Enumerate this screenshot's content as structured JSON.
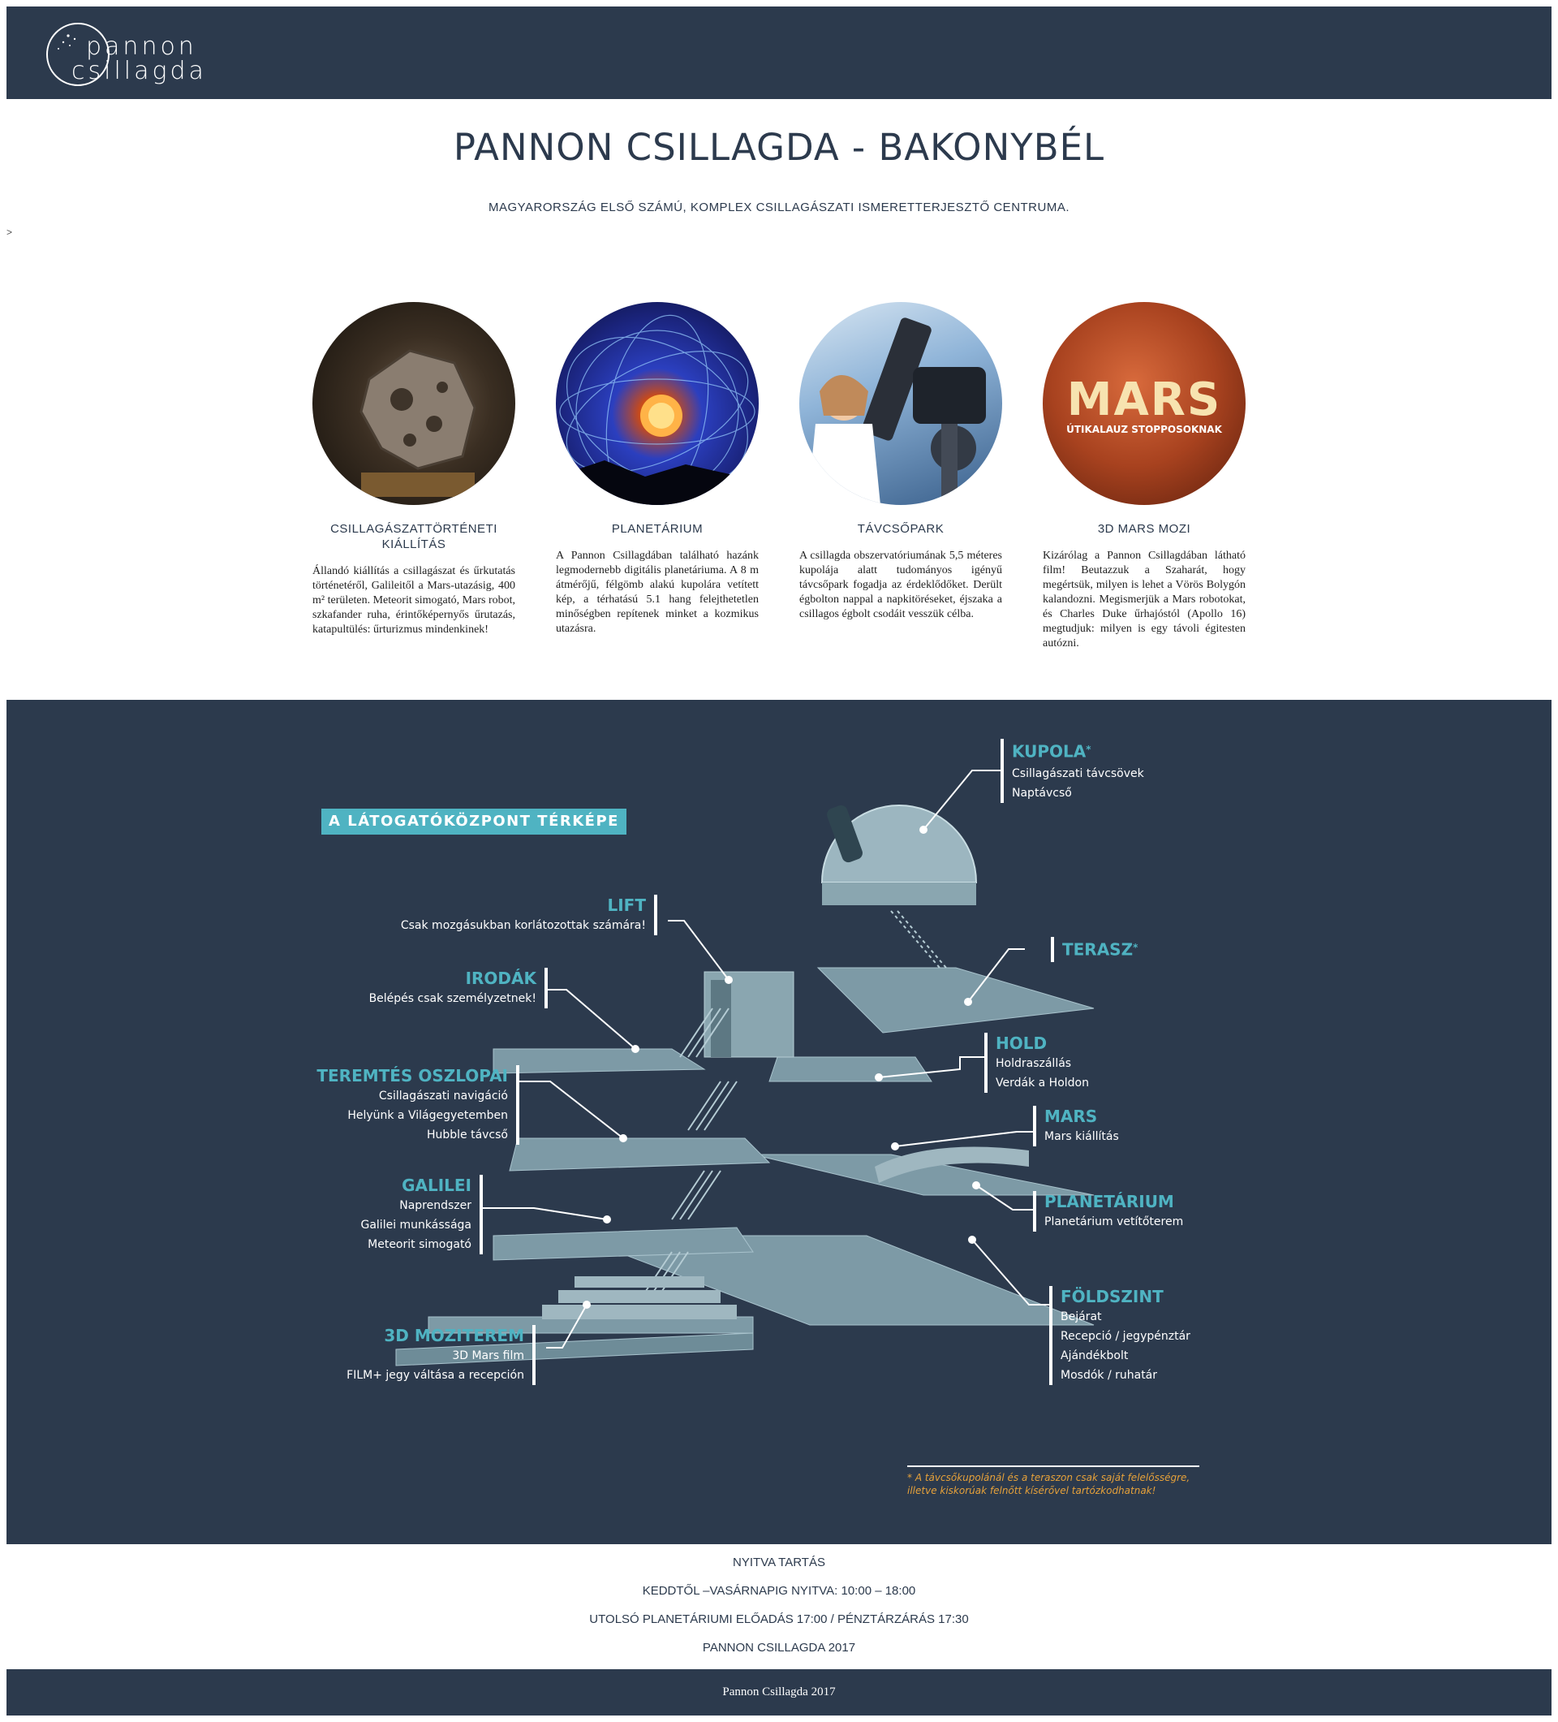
{
  "header": {
    "logo_line1": "pannon",
    "logo_line2": "csillagda"
  },
  "hero": {
    "title": "PANNON CSILLAGDA - BAKONYBÉL",
    "subtitle": "MAGYARORSZÁG ELSŐ SZÁMÚ, KOMPLEX CSILLAGÁSZATI ISMERETTERJESZTŐ CENTRUMA.",
    "stray_mark": ">"
  },
  "cards": [
    {
      "title": "CSILLAGÁSZATTÖRTÉNETI KIÁLLÍTÁS",
      "text": "Állandó kiállítás a csillagászat és űrkutatás történetéről, Galileitől a Mars-utazásig, 400 m² területen. Meteorit simogató, Mars robot, szkafander ruha, érintőképernyős űrutazás, katapultülés: űrturizmus mindenkinek!",
      "image": "meteorite"
    },
    {
      "title": "PLANETÁRIUM",
      "text": "A Pannon Csillagdában található hazánk legmodernebb digitális planetáriuma. A 8 m átmérőjű, félgömb alakú kupolára vetített kép, a térhatású 5.1 hang felejthetetlen minőségben repítenek minket a kozmikus utazásra.",
      "image": "planetarium-dome"
    },
    {
      "title": "TÁVCSŐPARK",
      "text": "A csillagda obszervatóriumának 5,5 méteres kupolája alatt tudományos igényű távcsőpark fogadja az érdeklődőket. Derült égbolton nappal a napkitöréseket, éjszaka a csillagos égbolt csodáit vesszük célba.",
      "image": "telescope"
    },
    {
      "title": "3D MARS MOZI",
      "text": "Kizárólag a Pannon Csillagdában látható film! Beutazzuk a Szaharát, hogy megértsük, milyen is lehet a Vörös Bolygón kalandozni. Megismerjük a Mars robotokat, és Charles Duke űrhajóstól (Apollo 16) megtudjuk: milyen is egy távoli égitesten autózni.",
      "image": "mars-poster",
      "image_word": "MARS",
      "image_subtitle": "ÚTIKALAUZ STOPPOSOKNAK"
    }
  ],
  "map": {
    "title": "A LÁTOGATÓKÖZPONT TÉRKÉPE",
    "kupola": {
      "heading": "KUPOLA",
      "star": "*",
      "lines": [
        "Csillagászati távcsövek",
        "Naptávcső"
      ]
    },
    "terasz": {
      "heading": "TERASZ",
      "star": "*"
    },
    "lift": {
      "heading": "LIFT",
      "lines": [
        "Csak mozgásukban korlátozottak számára!"
      ]
    },
    "irodak": {
      "heading": "IRODÁK",
      "lines": [
        "Belépés csak személyzetnek!"
      ]
    },
    "hold": {
      "heading": "HOLD",
      "lines": [
        "Holdraszállás",
        "Verdák a Holdon"
      ]
    },
    "teremtes": {
      "heading": "TEREMTÉS OSZLOPAI",
      "lines": [
        "Csillagászati navigáció",
        "Helyünk a Világegyetemben",
        "Hubble távcső"
      ]
    },
    "mars": {
      "heading": "MARS",
      "lines": [
        "Mars kiállítás"
      ]
    },
    "galilei": {
      "heading": "GALILEI",
      "lines": [
        "Naprendszer",
        "Galilei munkássága",
        "Meteorit simogató"
      ]
    },
    "planetarium": {
      "heading": "PLANETÁRIUM",
      "lines": [
        "Planetárium vetítőterem"
      ]
    },
    "foldszint": {
      "heading": "FÖLDSZINT",
      "lines": [
        "Bejárat",
        "Recepció / jegypénztár",
        "Ajándékbolt",
        "Mosdók / ruhatár"
      ]
    },
    "mozi": {
      "heading": "3D MOZITEREM",
      "lines": [
        "3D Mars film",
        "FILM+ jegy váltása a recepción"
      ]
    },
    "footnote": "* A távcsőkupolánál és a teraszon csak saját felelősségre, illetve kiskorúak felnőtt kísérővel tartózkodhatnak!"
  },
  "hours": {
    "title": "NYITVA TARTÁS",
    "days": "KEDDTŐL –VASÁRNAPIG NYITVA: 10:00 – 18:00",
    "last_show": "UTOLSÓ PLANETÁRIUMI ELŐADÁS 17:00 / PÉNZTÁRZÁRÁS 17:30",
    "copyright": "PANNON CSILLAGDA 2017"
  },
  "footer": {
    "text": "Pannon Csillagda 2017"
  },
  "colors": {
    "navy": "#2c3a4d",
    "accent_teal": "#4fb3c2",
    "footnote_orange": "#e6a13a"
  }
}
